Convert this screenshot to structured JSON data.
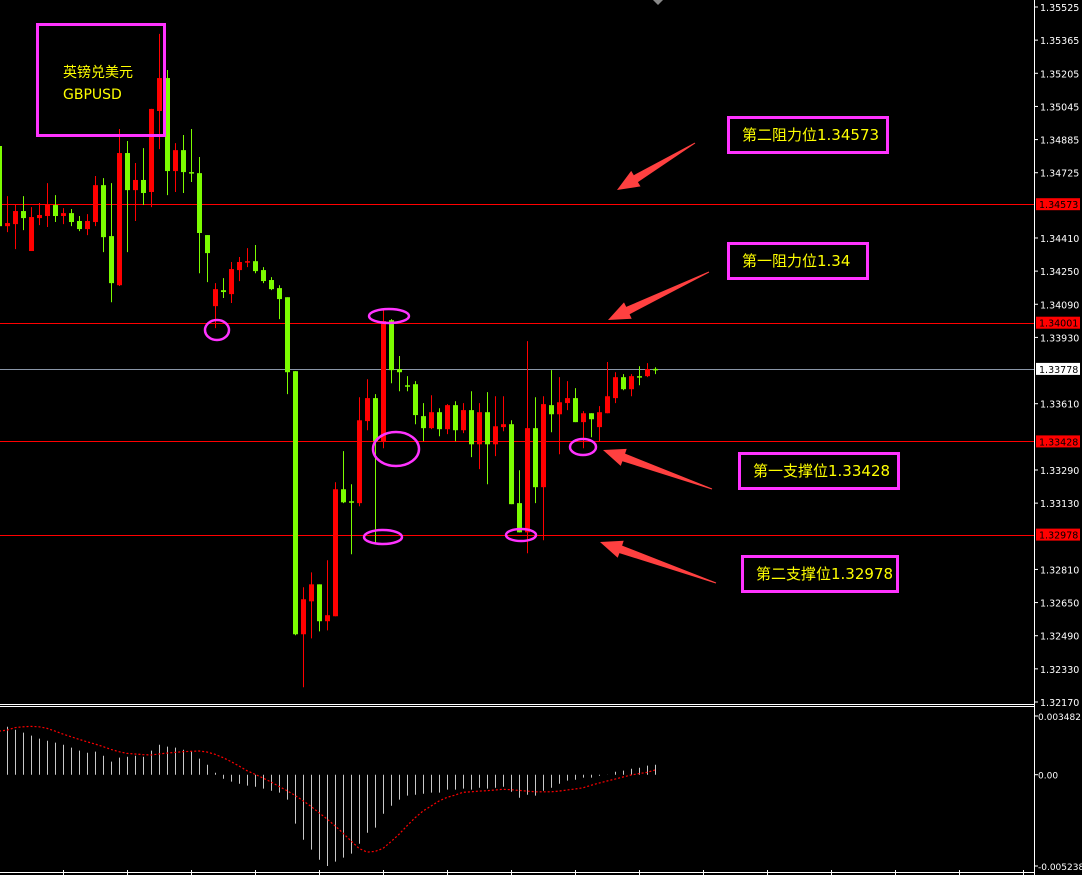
{
  "chart_data": {
    "type": "candlestick",
    "symbol_cn": "英镑兑美元",
    "symbol": "GBPUSD",
    "ylim": [
      1.3217,
      1.35525
    ],
    "y_ticks": [
      "1.35525",
      "1.35365",
      "1.35205",
      "1.35045",
      "1.34885",
      "1.34725",
      "1.34410",
      "1.34250",
      "1.34090",
      "1.33930",
      "1.33610",
      "1.33290",
      "1.33130",
      "1.32810",
      "1.32650",
      "1.32490",
      "1.32330",
      "1.32170"
    ],
    "bull_color": "#ff0000",
    "bear_color": "#7cfc00",
    "candles_ohlc": [
      [
        1.34854,
        1.34854,
        1.34467,
        1.34467
      ],
      [
        1.34467,
        1.34612,
        1.34438,
        1.34482
      ],
      [
        1.34477,
        1.34569,
        1.34356,
        1.3454
      ],
      [
        1.3454,
        1.34612,
        1.34448,
        1.34506
      ],
      [
        1.34347,
        1.34559,
        1.34347,
        1.34511
      ],
      [
        1.34506,
        1.34579,
        1.34472,
        1.34521
      ],
      [
        1.34516,
        1.34675,
        1.34463,
        1.34574
      ],
      [
        1.34569,
        1.34617,
        1.34487,
        1.34516
      ],
      [
        1.34516,
        1.34554,
        1.34477,
        1.3453
      ],
      [
        1.3453,
        1.3455,
        1.34467,
        1.34487
      ],
      [
        1.34492,
        1.34516,
        1.34443,
        1.34453
      ],
      [
        1.34453,
        1.34525,
        1.34424,
        1.34492
      ],
      [
        1.34487,
        1.34709,
        1.34467,
        1.34665
      ],
      [
        1.34665,
        1.34699,
        1.34342,
        1.34414
      ],
      [
        1.34419,
        1.34675,
        1.341,
        1.34192
      ],
      [
        1.34182,
        1.34936,
        1.34178,
        1.3482
      ],
      [
        1.3482,
        1.34878,
        1.34342,
        1.34641
      ],
      [
        1.34641,
        1.34772,
        1.34492,
        1.3469
      ],
      [
        1.3469,
        1.34844,
        1.34569,
        1.34627
      ],
      [
        1.34632,
        1.35033,
        1.34559,
        1.35033
      ],
      [
        1.35023,
        1.35395,
        1.34839,
        1.35182
      ],
      [
        1.35182,
        1.35221,
        1.34617,
        1.34733
      ],
      [
        1.34733,
        1.34868,
        1.34632,
        1.34834
      ],
      [
        1.34834,
        1.34907,
        1.34627,
        1.34728
      ],
      [
        1.34728,
        1.34936,
        1.3468,
        1.34723
      ],
      [
        1.34723,
        1.34801,
        1.3424,
        1.34434
      ],
      [
        1.34424,
        1.34424,
        1.34197,
        1.34337
      ],
      [
        1.34081,
        1.34192,
        1.33975,
        1.34163
      ],
      [
        1.34158,
        1.34216,
        1.3412,
        1.34149
      ],
      [
        1.34139,
        1.34294,
        1.34096,
        1.3426
      ],
      [
        1.34255,
        1.34318,
        1.34202,
        1.34294
      ],
      [
        1.34294,
        1.34361,
        1.34269,
        1.34298
      ],
      [
        1.34298,
        1.34376,
        1.3424,
        1.3425
      ],
      [
        1.34255,
        1.34269,
        1.34192,
        1.34202
      ],
      [
        1.34207,
        1.34221,
        1.34158,
        1.34163
      ],
      [
        1.34168,
        1.34182,
        1.34018,
        1.34115
      ],
      [
        1.34124,
        1.34124,
        1.33656,
        1.33762
      ],
      [
        1.33767,
        1.33767,
        1.32492,
        1.32497
      ],
      [
        1.32497,
        1.32724,
        1.32241,
        1.32666
      ],
      [
        1.32656,
        1.32796,
        1.32477,
        1.32738
      ],
      [
        1.32738,
        1.32738,
        1.32511,
        1.3256
      ],
      [
        1.3256,
        1.32854,
        1.32516,
        1.32589
      ],
      [
        1.32584,
        1.33231,
        1.32584,
        1.33197
      ],
      [
        1.33197,
        1.33381,
        1.3313,
        1.33134
      ],
      [
        1.33139,
        1.33221,
        1.32883,
        1.33134
      ],
      [
        1.3313,
        1.33641,
        1.33115,
        1.3353
      ],
      [
        1.33526,
        1.33728,
        1.33482,
        1.33637
      ],
      [
        1.33637,
        1.33656,
        1.32936,
        1.33429
      ],
      [
        1.33429,
        1.34062,
        1.33395,
        1.34009
      ],
      [
        1.34013,
        1.34018,
        1.33709,
        1.33772
      ],
      [
        1.33777,
        1.3384,
        1.3367,
        1.33762
      ],
      [
        1.33699,
        1.33743,
        1.3367,
        1.33695
      ],
      [
        1.33704,
        1.33719,
        1.33511,
        1.33555
      ],
      [
        1.3355,
        1.33613,
        1.33429,
        1.33492
      ],
      [
        1.33492,
        1.33651,
        1.33487,
        1.33569
      ],
      [
        1.33569,
        1.33588,
        1.33453,
        1.33487
      ],
      [
        1.33487,
        1.33608,
        1.33463,
        1.33603
      ],
      [
        1.33603,
        1.33622,
        1.33429,
        1.33482
      ],
      [
        1.33482,
        1.33613,
        1.33468,
        1.33579
      ],
      [
        1.33579,
        1.3367,
        1.33352,
        1.33414
      ],
      [
        1.33414,
        1.33613,
        1.33294,
        1.33569
      ],
      [
        1.33569,
        1.33666,
        1.33221,
        1.33414
      ],
      [
        1.33414,
        1.33646,
        1.33357,
        1.33501
      ],
      [
        1.33497,
        1.33646,
        1.33477,
        1.33511
      ],
      [
        1.33511,
        1.3353,
        1.33125,
        1.33125
      ],
      [
        1.3313,
        1.33289,
        1.32989,
        1.32989
      ],
      [
        1.32989,
        1.33912,
        1.32888,
        1.33492
      ],
      [
        1.33492,
        1.33641,
        1.3313,
        1.33207
      ],
      [
        1.33207,
        1.33646,
        1.32951,
        1.33608
      ],
      [
        1.33603,
        1.33772,
        1.33472,
        1.33559
      ],
      [
        1.33559,
        1.33738,
        1.33366,
        1.33617
      ],
      [
        1.33613,
        1.33719,
        1.33579,
        1.33637
      ],
      [
        1.33637,
        1.33685,
        1.33521,
        1.33521
      ],
      [
        1.33521,
        1.33574,
        1.33395,
        1.33564
      ],
      [
        1.33564,
        1.33564,
        1.33448,
        1.33535
      ],
      [
        1.33497,
        1.33598,
        1.33429,
        1.33569
      ],
      [
        1.33564,
        1.33811,
        1.33564,
        1.33646
      ],
      [
        1.33637,
        1.33762,
        1.33613,
        1.33738
      ],
      [
        1.33738,
        1.33753,
        1.33675,
        1.3368
      ],
      [
        1.3368,
        1.33753,
        1.33646,
        1.33743
      ],
      [
        1.33743,
        1.33791,
        1.33699,
        1.33738
      ],
      [
        1.33743,
        1.33806,
        1.33738,
        1.33777
      ],
      [
        1.33778,
        1.33786,
        1.33753,
        1.33778
      ]
    ],
    "current_price": {
      "value": 1.33778,
      "label": "1.33778",
      "line_color": "#8a96a8"
    },
    "levels": [
      {
        "price": 1.34573,
        "axis_label": "1.34573",
        "text": "第二阻力位1.34573",
        "color": "#ff0000"
      },
      {
        "price": 1.34001,
        "axis_label": "1.34001",
        "text": "第一阻力位1.34",
        "color": "#ff0000"
      },
      {
        "price": 1.33428,
        "axis_label": "1.33428",
        "text": "第一支撑位1.33428",
        "color": "#ff0000"
      },
      {
        "price": 1.32978,
        "axis_label": "1.32978",
        "text": "第二支撑位1.32978",
        "color": "#ff0000"
      }
    ],
    "annotation_color": "#ff33ff",
    "label_text_color": "#ffff00",
    "indicator": {
      "type": "macd",
      "ticks": [
        "0.003482",
        "0.00",
        "-0.005238"
      ],
      "range": [
        -0.005238,
        0.003482
      ],
      "histogram_color": "#c8c8c8",
      "signal_color": "#ff0000",
      "histogram": [
        0.00275,
        0.00275,
        0.00258,
        0.00241,
        0.00224,
        0.00207,
        0.00195,
        0.00184,
        0.00172,
        0.00155,
        0.00138,
        0.00126,
        0.00132,
        0.00109,
        0.00075,
        0.00098,
        0.00103,
        0.00109,
        0.00103,
        0.00138,
        0.00172,
        0.00161,
        0.00155,
        0.00143,
        0.00132,
        0.00092,
        0.00057,
        0.00011,
        -0.00023,
        -0.0004,
        -0.00052,
        -0.00063,
        -0.00069,
        -0.0008,
        -0.00092,
        -0.00103,
        -0.00143,
        -0.00281,
        -0.00373,
        -0.0043,
        -0.00488,
        -0.00524,
        -0.00499,
        -0.00476,
        -0.00453,
        -0.00396,
        -0.00333,
        -0.00304,
        -0.00224,
        -0.00178,
        -0.00143,
        -0.0012,
        -0.00115,
        -0.00109,
        -0.00103,
        -0.00103,
        -0.00086,
        -0.00086,
        -0.0008,
        -0.00086,
        -0.00075,
        -0.0008,
        -0.00075,
        -0.00069,
        -0.00098,
        -0.00132,
        -0.00115,
        -0.0012,
        -0.00092,
        -0.00075,
        -0.00052,
        -0.00034,
        -0.00029,
        -0.00017,
        -0.00017,
        -6e-05,
        -1e-05,
        0.00017,
        0.00023,
        0.00034,
        0.0004,
        0.00052,
        0.00057
      ],
      "signal": [
        0.0025,
        0.00256,
        0.0027,
        0.00275,
        0.00277,
        0.00275,
        0.00266,
        0.0025,
        0.00233,
        0.00218,
        0.00203,
        0.00189,
        0.00176,
        0.00161,
        0.00145,
        0.00132,
        0.00122,
        0.00119,
        0.00115,
        0.00113,
        0.00119,
        0.00124,
        0.00128,
        0.00132,
        0.00134,
        0.00136,
        0.0013,
        0.00117,
        0.00098,
        0.00075,
        0.0005,
        0.00023,
        2e-05,
        -0.00019,
        -0.00042,
        -0.00067,
        -0.00092,
        -0.00119,
        -0.00149,
        -0.00182,
        -0.00218,
        -0.00254,
        -0.00293,
        -0.00335,
        -0.0038,
        -0.00423,
        -0.00444,
        -0.0044,
        -0.00423,
        -0.00384,
        -0.00342,
        -0.00293,
        -0.00247,
        -0.00208,
        -0.0018,
        -0.00151,
        -0.0013,
        -0.00117,
        -0.00101,
        -0.00098,
        -0.00094,
        -0.00092,
        -0.00088,
        -0.00084,
        -0.00086,
        -0.0009,
        -0.00094,
        -0.00098,
        -0.00098,
        -0.00098,
        -0.00094,
        -0.00088,
        -0.00082,
        -0.00075,
        -0.00061,
        -0.00048,
        -0.00036,
        -0.00025,
        -0.00013,
        -2e-05,
        6e-05,
        0.00013,
        0.00027
      ]
    }
  }
}
